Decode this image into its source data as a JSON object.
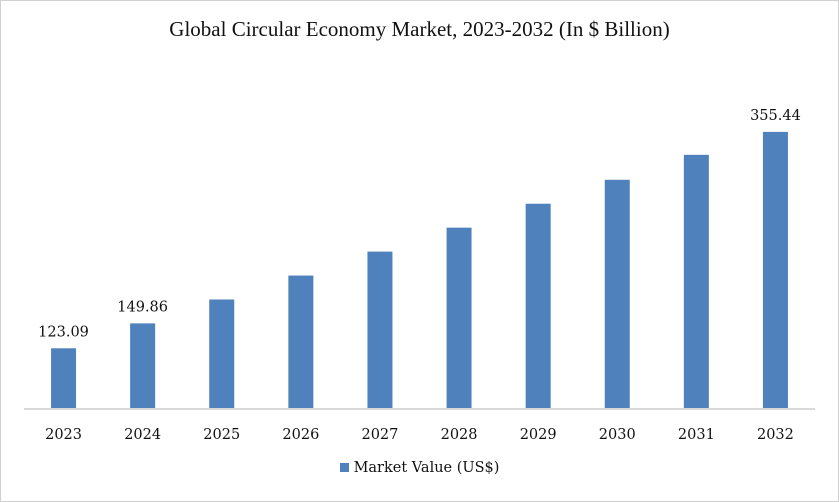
{
  "chart_data": {
    "type": "bar",
    "title": "Global Circular Economy Market, 2023-2032 (In $ Billion)",
    "categories": [
      "2023",
      "2024",
      "2025",
      "2026",
      "2027",
      "2028",
      "2029",
      "2030",
      "2031",
      "2032"
    ],
    "series": [
      {
        "name": "Market Value (US$)",
        "color": "#4f81bd",
        "values": [
          123.09,
          149.86,
          175.5,
          201.2,
          226.9,
          252.6,
          278.3,
          304.0,
          330.8,
          355.44
        ]
      }
    ],
    "data_labels": {
      "0": "123.09",
      "1": "149.86",
      "9": "355.44"
    },
    "xlabel": "",
    "ylabel": "",
    "ylim": [
      59,
      380
    ],
    "grid": false,
    "y_axis_visible": false,
    "legend": "bottom"
  }
}
